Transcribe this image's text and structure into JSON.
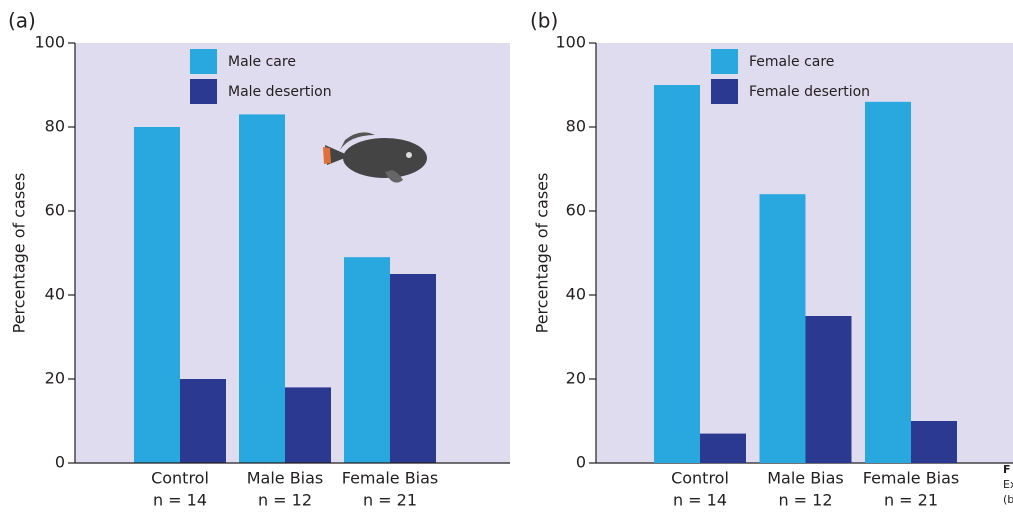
{
  "chart_data": [
    {
      "type": "bar",
      "panel_label": "(a)",
      "ylabel": "Percentage of cases",
      "categories": [
        "Control",
        "Male Bias",
        "Female Bias"
      ],
      "sample_sizes": [
        "n = 14",
        "n = 12",
        "n = 21"
      ],
      "series": [
        {
          "name": "Male care",
          "color": "#29a8e0",
          "values": [
            80,
            83,
            49
          ]
        },
        {
          "name": "Male desertion",
          "color": "#2b3990",
          "values": [
            20,
            18,
            45
          ]
        }
      ],
      "ylim": [
        0,
        100
      ],
      "yticks": [
        0,
        20,
        40,
        60,
        80,
        100
      ],
      "background": "#e0dcef"
    },
    {
      "type": "bar",
      "panel_label": "(b)",
      "ylabel": "Percentage of cases",
      "categories": [
        "Control",
        "Male Bias",
        "Female Bias"
      ],
      "sample_sizes": [
        "n = 14",
        "n = 12",
        "n = 21"
      ],
      "series": [
        {
          "name": "Female care",
          "color": "#29a8e0",
          "values": [
            90,
            64,
            86
          ]
        },
        {
          "name": "Female desertion",
          "color": "#2b3990",
          "values": [
            7,
            35,
            10
          ]
        }
      ],
      "ylim": [
        0,
        100
      ],
      "yticks": [
        0,
        20,
        40,
        60,
        80,
        100
      ],
      "background": "#e0dcef"
    }
  ],
  "caption_fragment": [
    "F",
    "Ex",
    "(b"
  ]
}
